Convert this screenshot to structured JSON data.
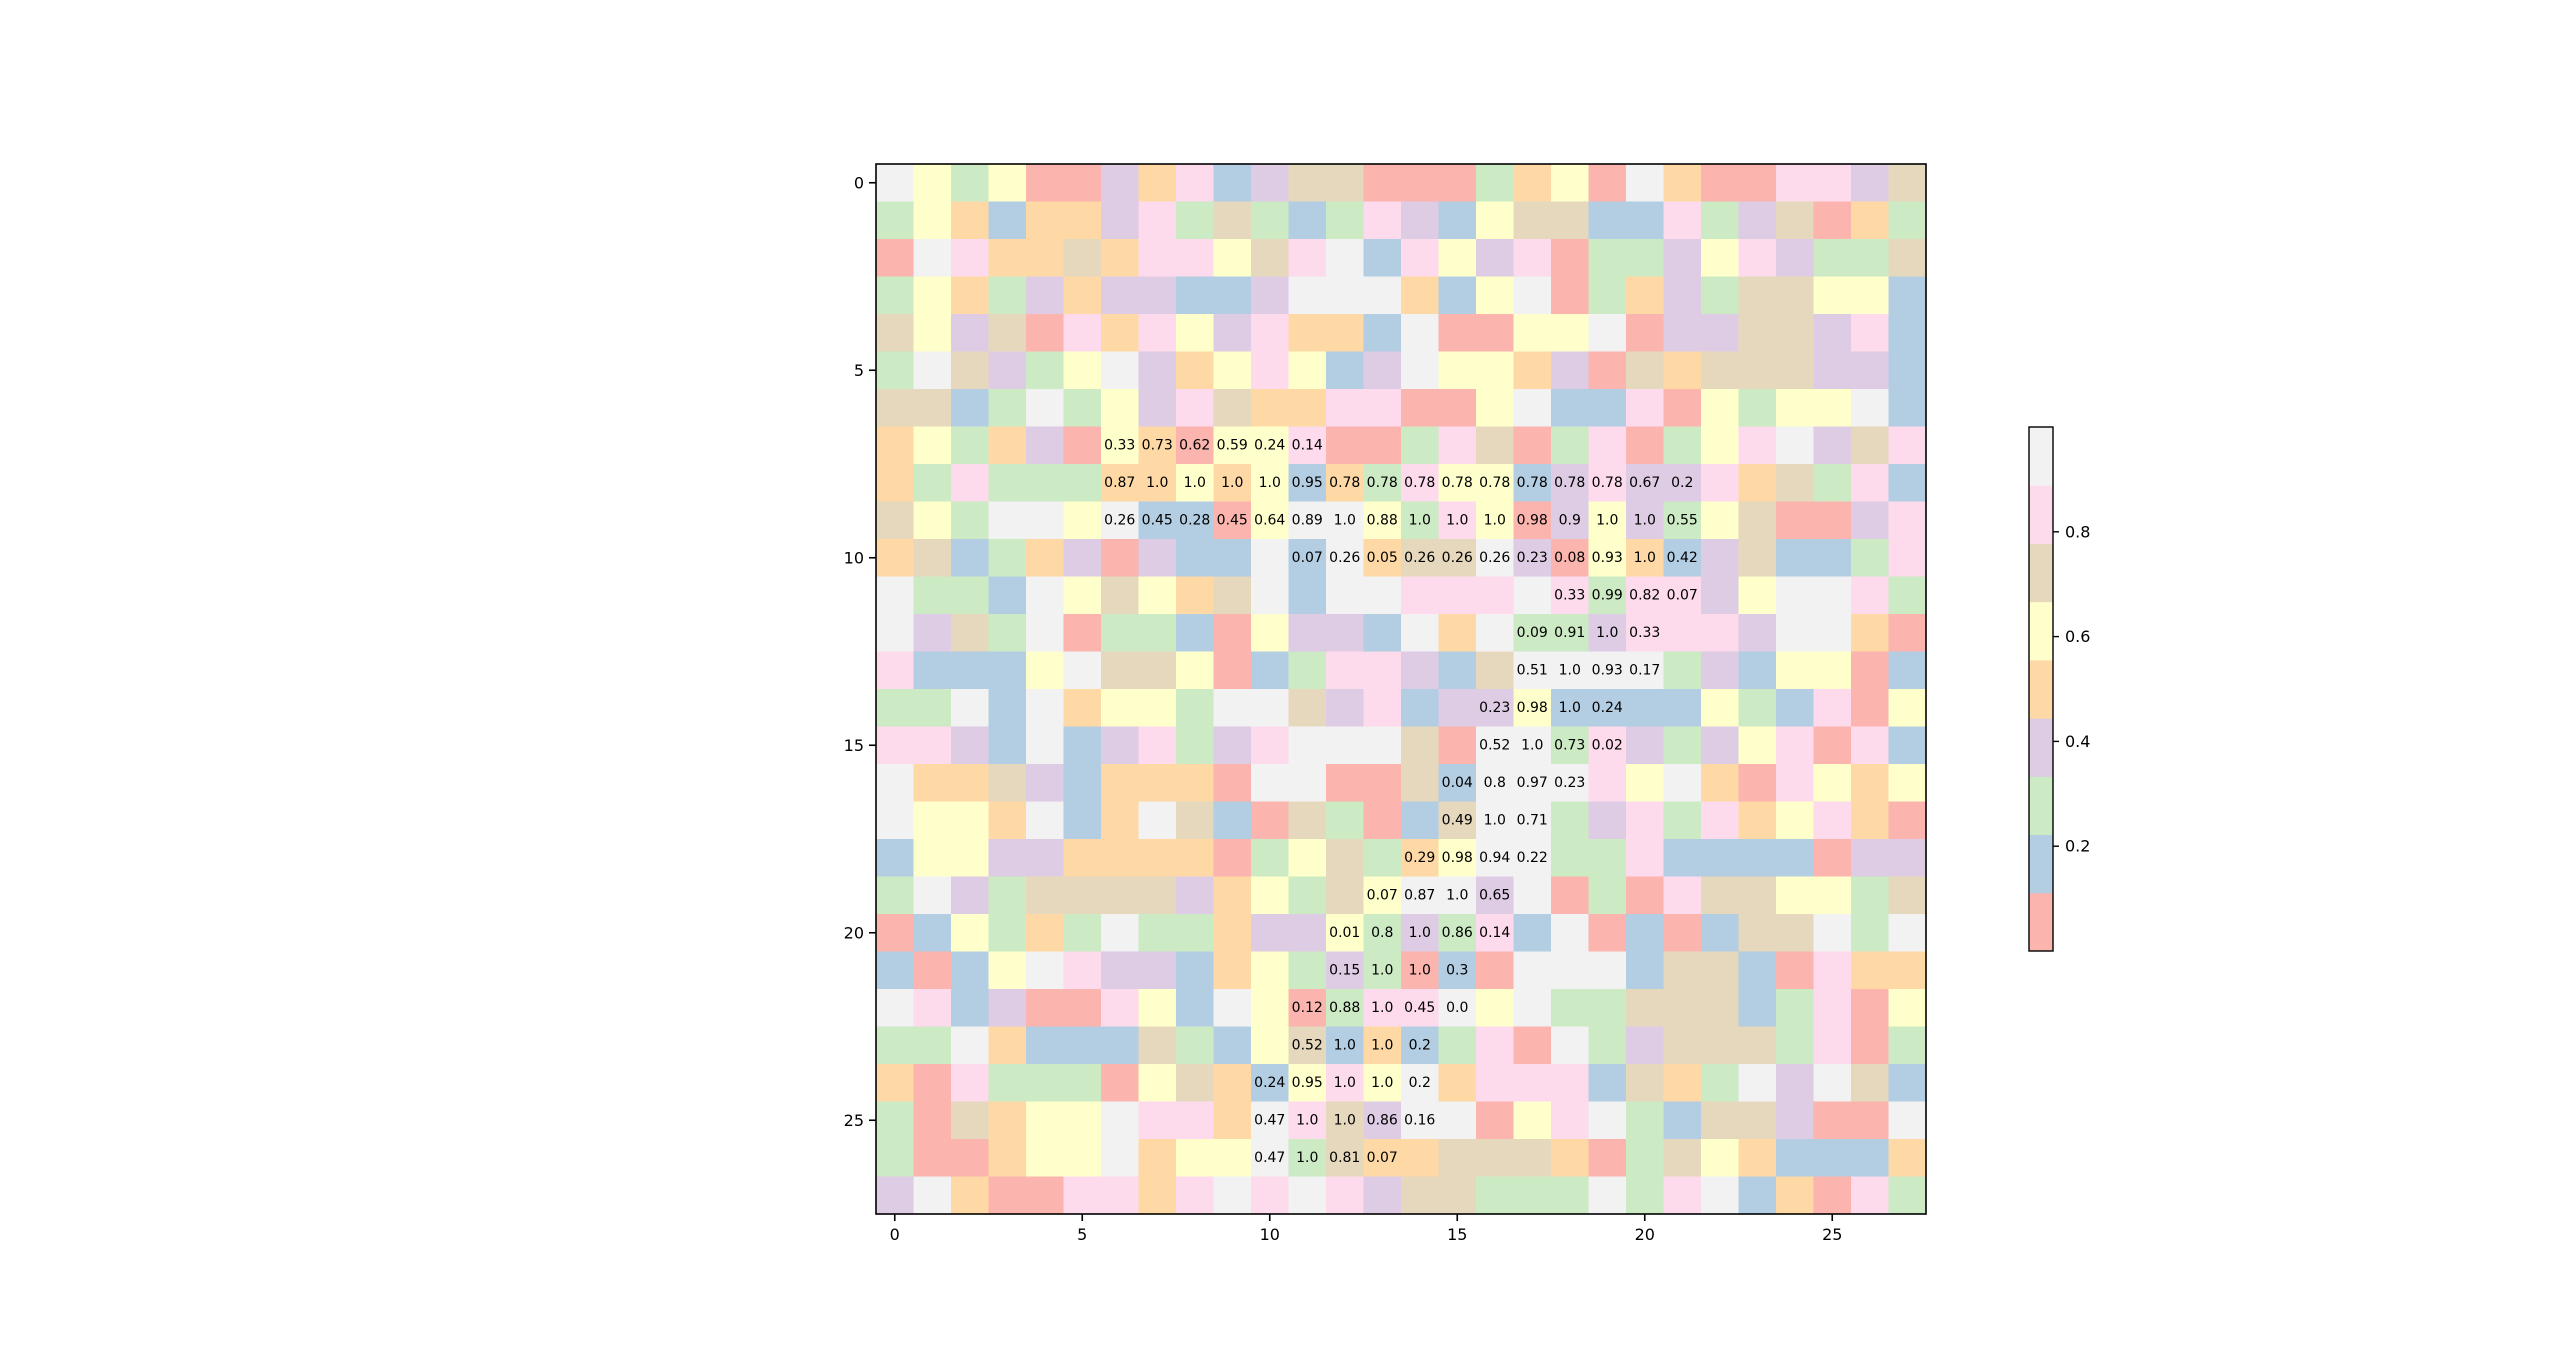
{
  "chart_data": {
    "type": "heatmap",
    "title": "",
    "xlabel": "",
    "ylabel": "",
    "x_ticks": [
      0,
      5,
      10,
      15,
      20,
      25
    ],
    "y_ticks": [
      0,
      5,
      10,
      15,
      20,
      25
    ],
    "xlim": [
      -0.5,
      27.5
    ],
    "ylim": [
      27.5,
      -0.5
    ],
    "colormap": "Pastel1",
    "colormap_colors": [
      "#fbb4ae",
      "#b3cde3",
      "#ccebc5",
      "#decbe4",
      "#fed9a6",
      "#ffffcc",
      "#e5d8bd",
      "#fddaec",
      "#f2f2f2"
    ],
    "colorbar": {
      "vmin": 0.0,
      "vmax": 1.0,
      "ticks": [
        0.2,
        0.4,
        0.6,
        0.8
      ],
      "tick_labels": [
        "0.2",
        "0.4",
        "0.6",
        "0.8"
      ]
    },
    "background_grid": [
      "8525003471366000245084007736",
      "2541443726212731566117236042",
      "0874464775678175370223573226",
      "2542343311388841580243266551",
      "6536074753744180055803366371",
      "2863258345751385543064666331",
      "6612825376447700581170525581",
      "4524305405570027602702578367",
      "4272224454514275513733746271",
      "6528858110588527503532560037",
      "4612430311818466830541361127",
      "8221856546818877787277358872",
      "8362802210533184822377738840",
      "7111586650127731688882315501",
      "2281845528863713351111521705",
      "7731813723788860882732357071",
      "8446314440880061888758407545",
      "8554814861062016882372745740",
      "1553344440256245882271111033",
      "2832666634526588380207665526",
      "0152428224335232718010166828",
      "1015873314523201088816610744",
      "8713007518502778582266612705",
      "2284111621561412708236662702",
      "4072220564157584777164283861",
      "2064558774876388057821663008",
      "2004558455826446664026541114",
      "3840077478787366222827814072"
    ],
    "annotations": [
      {
        "row": 7,
        "col": 6,
        "text": "0.33"
      },
      {
        "row": 7,
        "col": 7,
        "text": "0.73"
      },
      {
        "row": 7,
        "col": 8,
        "text": "0.62"
      },
      {
        "row": 7,
        "col": 9,
        "text": "0.59"
      },
      {
        "row": 7,
        "col": 10,
        "text": "0.24"
      },
      {
        "row": 7,
        "col": 11,
        "text": "0.14"
      },
      {
        "row": 8,
        "col": 6,
        "text": "0.87"
      },
      {
        "row": 8,
        "col": 7,
        "text": "1.0"
      },
      {
        "row": 8,
        "col": 8,
        "text": "1.0"
      },
      {
        "row": 8,
        "col": 9,
        "text": "1.0"
      },
      {
        "row": 8,
        "col": 10,
        "text": "1.0"
      },
      {
        "row": 8,
        "col": 11,
        "text": "0.95"
      },
      {
        "row": 8,
        "col": 12,
        "text": "0.78"
      },
      {
        "row": 8,
        "col": 13,
        "text": "0.78"
      },
      {
        "row": 8,
        "col": 14,
        "text": "0.78"
      },
      {
        "row": 8,
        "col": 15,
        "text": "0.78"
      },
      {
        "row": 8,
        "col": 16,
        "text": "0.78"
      },
      {
        "row": 8,
        "col": 17,
        "text": "0.78"
      },
      {
        "row": 8,
        "col": 18,
        "text": "0.78"
      },
      {
        "row": 8,
        "col": 19,
        "text": "0.78"
      },
      {
        "row": 8,
        "col": 20,
        "text": "0.67"
      },
      {
        "row": 8,
        "col": 21,
        "text": "0.2"
      },
      {
        "row": 9,
        "col": 6,
        "text": "0.26"
      },
      {
        "row": 9,
        "col": 7,
        "text": "0.45"
      },
      {
        "row": 9,
        "col": 8,
        "text": "0.28"
      },
      {
        "row": 9,
        "col": 9,
        "text": "0.45"
      },
      {
        "row": 9,
        "col": 10,
        "text": "0.64"
      },
      {
        "row": 9,
        "col": 11,
        "text": "0.89"
      },
      {
        "row": 9,
        "col": 12,
        "text": "1.0"
      },
      {
        "row": 9,
        "col": 13,
        "text": "0.88"
      },
      {
        "row": 9,
        "col": 14,
        "text": "1.0"
      },
      {
        "row": 9,
        "col": 15,
        "text": "1.0"
      },
      {
        "row": 9,
        "col": 16,
        "text": "1.0"
      },
      {
        "row": 9,
        "col": 17,
        "text": "0.98"
      },
      {
        "row": 9,
        "col": 18,
        "text": "0.9"
      },
      {
        "row": 9,
        "col": 19,
        "text": "1.0"
      },
      {
        "row": 9,
        "col": 20,
        "text": "1.0"
      },
      {
        "row": 9,
        "col": 21,
        "text": "0.55"
      },
      {
        "row": 10,
        "col": 11,
        "text": "0.07"
      },
      {
        "row": 10,
        "col": 12,
        "text": "0.26"
      },
      {
        "row": 10,
        "col": 13,
        "text": "0.05"
      },
      {
        "row": 10,
        "col": 14,
        "text": "0.26"
      },
      {
        "row": 10,
        "col": 15,
        "text": "0.26"
      },
      {
        "row": 10,
        "col": 16,
        "text": "0.26"
      },
      {
        "row": 10,
        "col": 17,
        "text": "0.23"
      },
      {
        "row": 10,
        "col": 18,
        "text": "0.08"
      },
      {
        "row": 10,
        "col": 19,
        "text": "0.93"
      },
      {
        "row": 10,
        "col": 20,
        "text": "1.0"
      },
      {
        "row": 10,
        "col": 21,
        "text": "0.42"
      },
      {
        "row": 11,
        "col": 18,
        "text": "0.33"
      },
      {
        "row": 11,
        "col": 19,
        "text": "0.99"
      },
      {
        "row": 11,
        "col": 20,
        "text": "0.82"
      },
      {
        "row": 11,
        "col": 21,
        "text": "0.07"
      },
      {
        "row": 12,
        "col": 17,
        "text": "0.09"
      },
      {
        "row": 12,
        "col": 18,
        "text": "0.91"
      },
      {
        "row": 12,
        "col": 19,
        "text": "1.0"
      },
      {
        "row": 12,
        "col": 20,
        "text": "0.33"
      },
      {
        "row": 13,
        "col": 17,
        "text": "0.51"
      },
      {
        "row": 13,
        "col": 18,
        "text": "1.0"
      },
      {
        "row": 13,
        "col": 19,
        "text": "0.93"
      },
      {
        "row": 13,
        "col": 20,
        "text": "0.17"
      },
      {
        "row": 14,
        "col": 16,
        "text": "0.23"
      },
      {
        "row": 14,
        "col": 17,
        "text": "0.98"
      },
      {
        "row": 14,
        "col": 18,
        "text": "1.0"
      },
      {
        "row": 14,
        "col": 19,
        "text": "0.24"
      },
      {
        "row": 15,
        "col": 16,
        "text": "0.52"
      },
      {
        "row": 15,
        "col": 17,
        "text": "1.0"
      },
      {
        "row": 15,
        "col": 18,
        "text": "0.73"
      },
      {
        "row": 15,
        "col": 19,
        "text": "0.02"
      },
      {
        "row": 16,
        "col": 15,
        "text": "0.04"
      },
      {
        "row": 16,
        "col": 16,
        "text": "0.8"
      },
      {
        "row": 16,
        "col": 17,
        "text": "0.97"
      },
      {
        "row": 16,
        "col": 18,
        "text": "0.23"
      },
      {
        "row": 17,
        "col": 15,
        "text": "0.49"
      },
      {
        "row": 17,
        "col": 16,
        "text": "1.0"
      },
      {
        "row": 17,
        "col": 17,
        "text": "0.71"
      },
      {
        "row": 18,
        "col": 14,
        "text": "0.29"
      },
      {
        "row": 18,
        "col": 15,
        "text": "0.98"
      },
      {
        "row": 18,
        "col": 16,
        "text": "0.94"
      },
      {
        "row": 18,
        "col": 17,
        "text": "0.22"
      },
      {
        "row": 19,
        "col": 13,
        "text": "0.07"
      },
      {
        "row": 19,
        "col": 14,
        "text": "0.87"
      },
      {
        "row": 19,
        "col": 15,
        "text": "1.0"
      },
      {
        "row": 19,
        "col": 16,
        "text": "0.65"
      },
      {
        "row": 20,
        "col": 12,
        "text": "0.01"
      },
      {
        "row": 20,
        "col": 13,
        "text": "0.8"
      },
      {
        "row": 20,
        "col": 14,
        "text": "1.0"
      },
      {
        "row": 20,
        "col": 15,
        "text": "0.86"
      },
      {
        "row": 20,
        "col": 16,
        "text": "0.14"
      },
      {
        "row": 21,
        "col": 12,
        "text": "0.15"
      },
      {
        "row": 21,
        "col": 13,
        "text": "1.0"
      },
      {
        "row": 21,
        "col": 14,
        "text": "1.0"
      },
      {
        "row": 21,
        "col": 15,
        "text": "0.3"
      },
      {
        "row": 22,
        "col": 11,
        "text": "0.12"
      },
      {
        "row": 22,
        "col": 12,
        "text": "0.88"
      },
      {
        "row": 22,
        "col": 13,
        "text": "1.0"
      },
      {
        "row": 22,
        "col": 14,
        "text": "0.45"
      },
      {
        "row": 22,
        "col": 15,
        "text": "0.0"
      },
      {
        "row": 23,
        "col": 11,
        "text": "0.52"
      },
      {
        "row": 23,
        "col": 12,
        "text": "1.0"
      },
      {
        "row": 23,
        "col": 13,
        "text": "1.0"
      },
      {
        "row": 23,
        "col": 14,
        "text": "0.2"
      },
      {
        "row": 24,
        "col": 10,
        "text": "0.24"
      },
      {
        "row": 24,
        "col": 11,
        "text": "0.95"
      },
      {
        "row": 24,
        "col": 12,
        "text": "1.0"
      },
      {
        "row": 24,
        "col": 13,
        "text": "1.0"
      },
      {
        "row": 24,
        "col": 14,
        "text": "0.2"
      },
      {
        "row": 25,
        "col": 10,
        "text": "0.47"
      },
      {
        "row": 25,
        "col": 11,
        "text": "1.0"
      },
      {
        "row": 25,
        "col": 12,
        "text": "1.0"
      },
      {
        "row": 25,
        "col": 13,
        "text": "0.86"
      },
      {
        "row": 25,
        "col": 14,
        "text": "0.16"
      },
      {
        "row": 26,
        "col": 10,
        "text": "0.47"
      },
      {
        "row": 26,
        "col": 11,
        "text": "1.0"
      },
      {
        "row": 26,
        "col": 12,
        "text": "0.81"
      },
      {
        "row": 26,
        "col": 13,
        "text": "0.07"
      }
    ]
  }
}
